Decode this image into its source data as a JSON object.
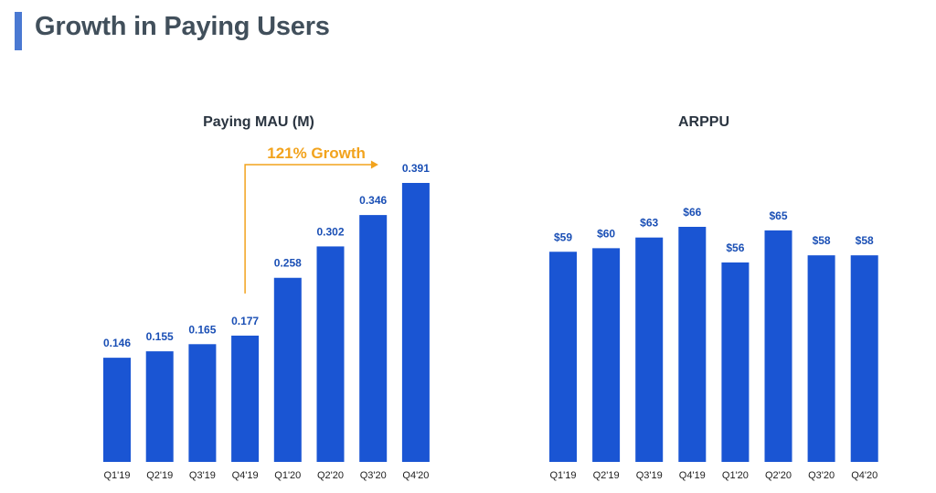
{
  "page": {
    "title": "Growth in Paying Users"
  },
  "colors": {
    "bar": "#1a55d3",
    "label": "#1a4fb5",
    "accent": "#f2a31d",
    "title_bar": "#4a79d2"
  },
  "chart_data": [
    {
      "type": "bar",
      "title": "Paying MAU (M)",
      "categories": [
        "Q1'19",
        "Q2'19",
        "Q3'19",
        "Q4'19",
        "Q1'20",
        "Q2'20",
        "Q3'20",
        "Q4'20"
      ],
      "values": [
        0.146,
        0.155,
        0.165,
        0.177,
        0.258,
        0.302,
        0.346,
        0.391
      ],
      "value_labels": [
        "0.146",
        "0.155",
        "0.165",
        "0.177",
        "0.258",
        "0.302",
        "0.346",
        "0.391"
      ],
      "ylim": [
        0,
        0.391
      ],
      "grid": false,
      "annotation": {
        "text": "121% Growth",
        "from": "Q4'19",
        "to": "Q4'20"
      }
    },
    {
      "type": "bar",
      "title": "ARPPU",
      "categories": [
        "Q1'19",
        "Q2'19",
        "Q3'19",
        "Q4'19",
        "Q1'20",
        "Q2'20",
        "Q3'20",
        "Q4'20"
      ],
      "values": [
        59,
        60,
        63,
        66,
        56,
        65,
        58,
        58
      ],
      "value_labels": [
        "$59",
        "$60",
        "$63",
        "$66",
        "$56",
        "$65",
        "$58",
        "$58"
      ],
      "ylim": [
        0,
        66
      ],
      "grid": false
    }
  ]
}
